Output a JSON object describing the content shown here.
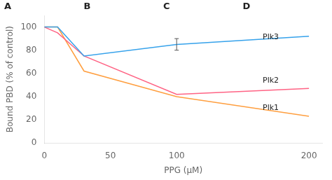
{
  "chart_data": {
    "type": "line",
    "xlabel": "PPG (μM)",
    "ylabel": "Bound PBD (% of control)",
    "xlim": [
      0,
      210
    ],
    "ylim": [
      0,
      110
    ],
    "xticks": [
      0,
      50,
      100,
      200
    ],
    "yticks": [
      0,
      20,
      40,
      60,
      80,
      100
    ],
    "grid": false,
    "x": [
      0,
      10,
      30,
      100,
      200
    ],
    "series": [
      {
        "name": "Plk3",
        "values": [
          100,
          100,
          75,
          85,
          92
        ],
        "errors": [
          null,
          null,
          null,
          5,
          null
        ]
      },
      {
        "name": "Plk2",
        "values": [
          100,
          95,
          75,
          42,
          47
        ]
      },
      {
        "name": "Plk1",
        "values": [
          100,
          100,
          62,
          40,
          23
        ]
      }
    ],
    "annotations": [
      {
        "text": "Plk3",
        "x": 165,
        "y": 91
      },
      {
        "text": "Plk2",
        "x": 165,
        "y": 54
      },
      {
        "text": "Plk1",
        "x": 165,
        "y": 30
      },
      {
        "text": "A"
      },
      {
        "text": "B"
      },
      {
        "text": "C"
      },
      {
        "text": "D"
      }
    ]
  }
}
